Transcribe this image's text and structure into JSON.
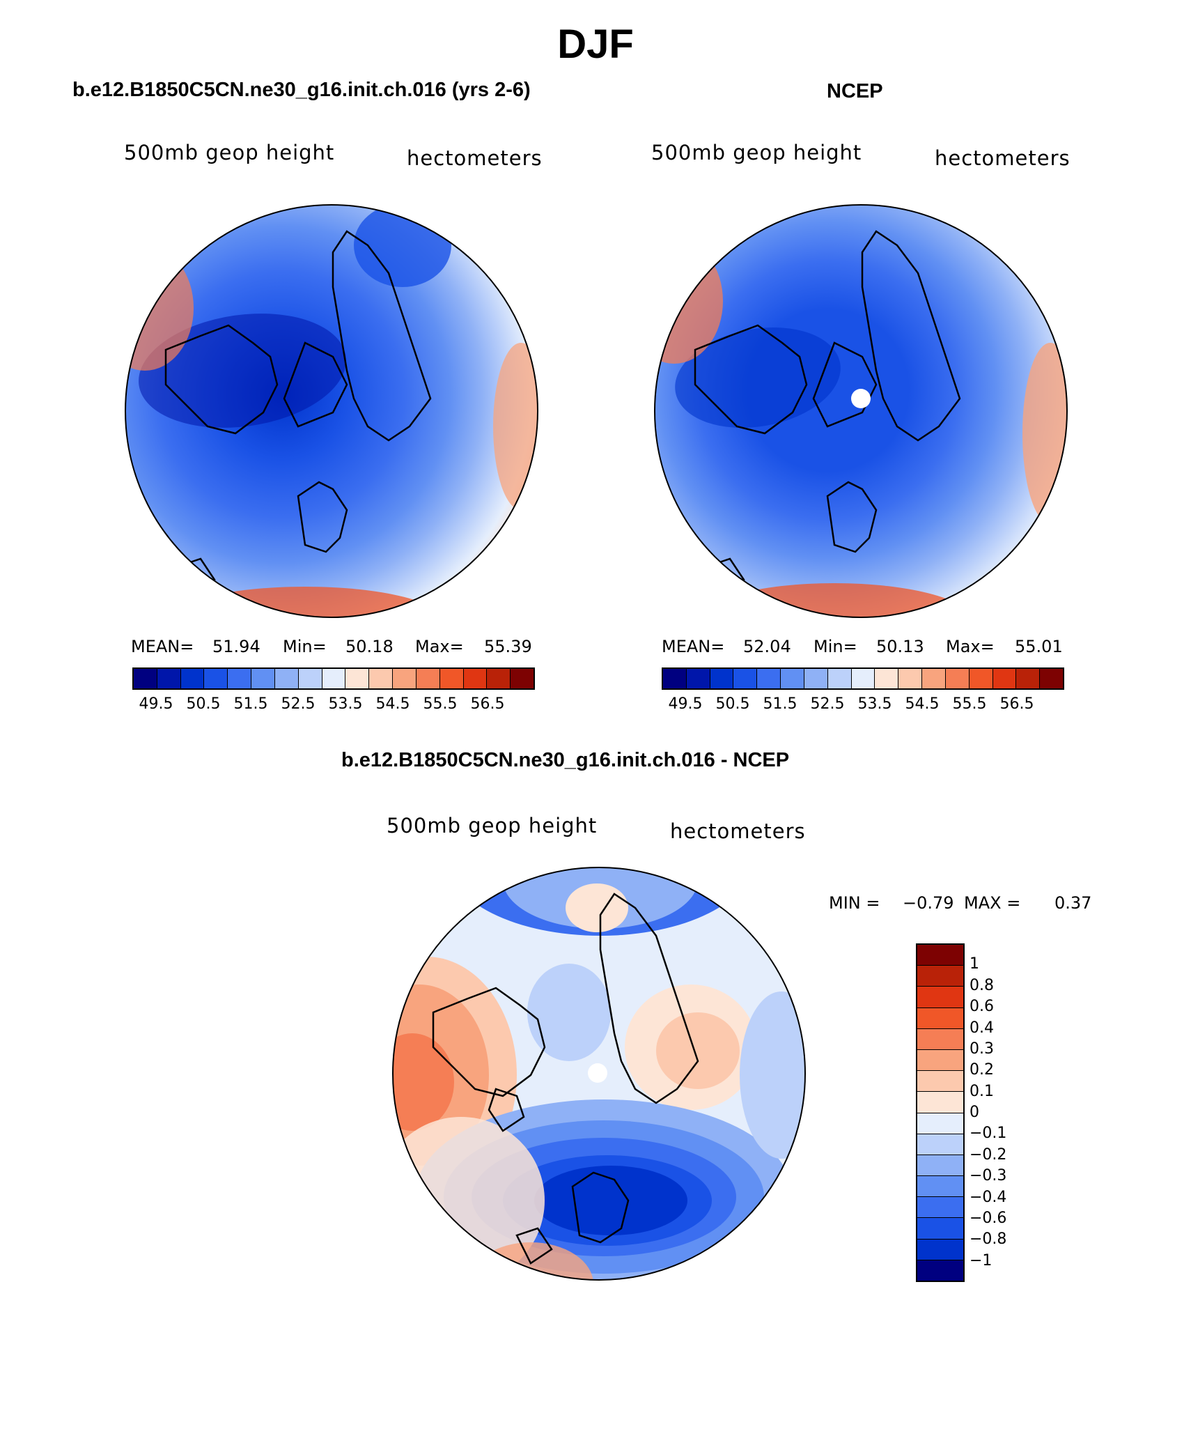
{
  "title": "DJF",
  "colors": {
    "abs": [
      "#000080",
      "#0016aa",
      "#0033cc",
      "#1a52e6",
      "#3b6ef0",
      "#6190f3",
      "#8fb1f6",
      "#bcd1fa",
      "#e5eefc",
      "#fde5d6",
      "#fcc9ae",
      "#f8a47e",
      "#f57e55",
      "#f05728",
      "#e03612",
      "#b92208",
      "#7d0202"
    ],
    "diff": [
      "#7d0202",
      "#b92208",
      "#e03612",
      "#f05728",
      "#f57e55",
      "#f8a47e",
      "#fcc9ae",
      "#fde5d6",
      "#e5eefc",
      "#bcd1fa",
      "#8fb1f6",
      "#6190f3",
      "#3b6ef0",
      "#1a52e6",
      "#0033cc",
      "#000080"
    ]
  },
  "panels": {
    "model": {
      "title": "b.e12.B1850C5CN.ne30_g16.init.ch.016 (yrs 2-6)",
      "variable": "500mb geop height",
      "units": "hectometers",
      "mean_label": "MEAN=",
      "mean": "51.94",
      "min_label": "Min=",
      "min": "50.18",
      "max_label": "Max=",
      "max": "55.39"
    },
    "obs": {
      "title": "NCEP",
      "variable": "500mb geop height",
      "units": "hectometers",
      "mean_label": "MEAN=",
      "mean": "52.04",
      "min_label": "Min=",
      "min": "50.13",
      "max_label": "Max=",
      "max": "55.01"
    },
    "diff": {
      "title": "b.e12.B1850C5CN.ne30_g16.init.ch.016 - NCEP",
      "variable": "500mb geop height",
      "units": "hectometers",
      "min_label": "MIN =",
      "min": "−0.79",
      "max_label": "MAX =",
      "max": "0.37"
    }
  },
  "colorbar_abs": {
    "tick_labels": [
      "49.5",
      "50.5",
      "51.5",
      "52.5",
      "53.5",
      "54.5",
      "55.5",
      "56.5"
    ]
  },
  "colorbar_diff": {
    "tick_labels": [
      "1",
      "0.8",
      "0.6",
      "0.4",
      "0.3",
      "0.2",
      "0.1",
      "0",
      "−0.1",
      "−0.2",
      "−0.3",
      "−0.4",
      "−0.6",
      "−0.8",
      "−1"
    ]
  }
}
